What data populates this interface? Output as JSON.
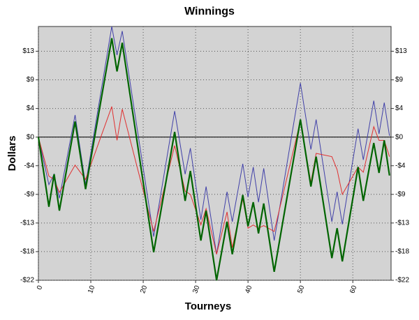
{
  "chart_data": {
    "type": "line",
    "title": "Winnings",
    "xlabel": "Tourneys",
    "ylabel": "Dollars",
    "x": [
      0,
      2,
      3,
      4,
      7,
      9,
      14,
      15,
      16,
      22,
      26,
      28,
      29,
      31,
      32,
      34,
      36,
      37,
      39,
      40,
      41,
      42,
      43,
      45,
      50,
      52,
      53,
      56,
      57,
      58,
      61,
      62,
      64,
      65,
      66,
      67
    ],
    "series": [
      {
        "color": "#4040a8",
        "width": 1,
        "values": [
          0,
          -7.3,
          -5.7,
          -9.4,
          3.4,
          -7.3,
          17,
          12.6,
          16.3,
          -15.3,
          4,
          -5.7,
          -1.7,
          -12.7,
          -7.6,
          -18,
          -8.4,
          -13,
          -4.1,
          -9.2,
          -4.6,
          -10,
          -4.8,
          -15.9,
          8.3,
          -1.9,
          2.7,
          -13,
          -8.4,
          -13.4,
          1.3,
          -3.5,
          5.6,
          0.5,
          5.3,
          0.2
        ]
      },
      {
        "color": "#e03030",
        "width": 1,
        "values": [
          0,
          -6,
          -6.5,
          -8.5,
          -4.3,
          -6.5,
          4.7,
          -0.5,
          4.3,
          -14.5,
          -1.3,
          -8.3,
          -8.8,
          -13.5,
          -11,
          -18,
          -11.5,
          -17,
          -9.5,
          -14,
          -13.5,
          -14,
          -13.6,
          -14.5,
          2.5,
          -7,
          -2.5,
          -3,
          -5,
          -8.8,
          -4.6,
          -5.4,
          1.6,
          -0.5,
          -0.5,
          -3
        ]
      },
      {
        "color": "#006400",
        "width": 2.2,
        "values": [
          0,
          -10.7,
          -5.7,
          -11.3,
          2.4,
          -8,
          15.2,
          10.1,
          14.5,
          -17.7,
          0.8,
          -9.8,
          -5.2,
          -15.9,
          -11.3,
          -22,
          -13,
          -18,
          -8.9,
          -13.7,
          -10,
          -14.8,
          -10.2,
          -20.7,
          2.7,
          -7.6,
          -3,
          -18.6,
          -14,
          -19.1,
          -4.6,
          -9.8,
          -0.9,
          -5.5,
          -0.5,
          -5.9
        ]
      }
    ],
    "xlim": [
      0,
      67.3
    ],
    "xticks": [
      0,
      10,
      20,
      30,
      40,
      50,
      60
    ],
    "ylim": [
      -22,
      17
    ],
    "yticks": [
      {
        "value": -22,
        "label": "-$22"
      },
      {
        "value": -17.6,
        "label": "-$18"
      },
      {
        "value": -13.2,
        "label": "-$13"
      },
      {
        "value": -8.8,
        "label": "-$9"
      },
      {
        "value": -4.4,
        "label": "-$4"
      },
      {
        "value": 0,
        "label": "$0"
      },
      {
        "value": 4.4,
        "label": "$4"
      },
      {
        "value": 8.8,
        "label": "$9"
      },
      {
        "value": 13.2,
        "label": "$13"
      }
    ],
    "grid": true,
    "zero_line": true
  }
}
